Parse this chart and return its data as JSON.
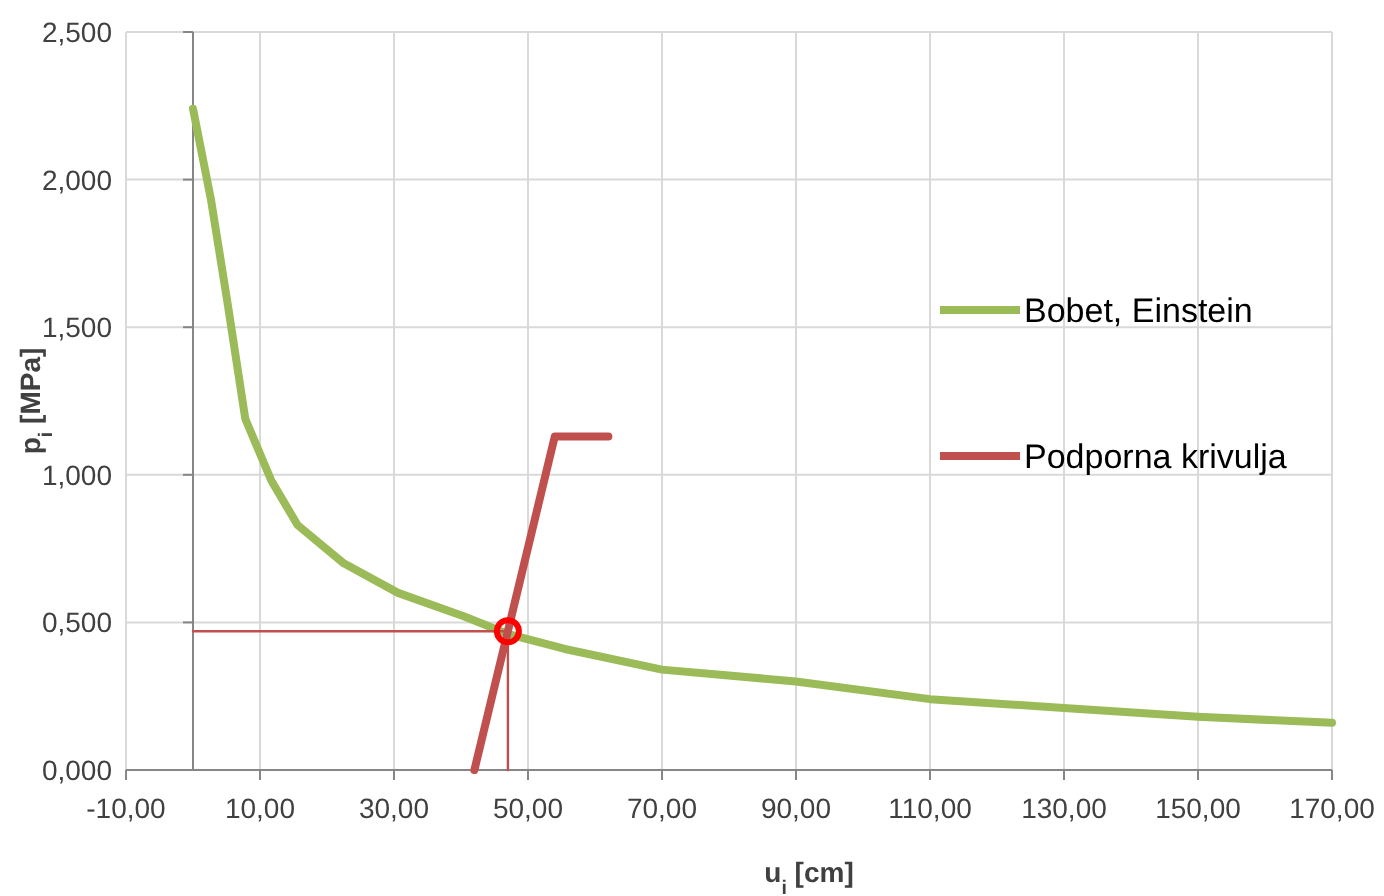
{
  "chart_data": {
    "type": "line",
    "xlabel": "u$_{i}$ [cm]",
    "ylabel": "p$_{i}$ [MPa]",
    "xlim": [
      -10,
      170
    ],
    "ylim": [
      0,
      2.5
    ],
    "xticks": [
      {
        "value": -10,
        "label": "-10,00"
      },
      {
        "value": 10,
        "label": "10,00"
      },
      {
        "value": 30,
        "label": "30,00"
      },
      {
        "value": 50,
        "label": "50,00"
      },
      {
        "value": 70,
        "label": "70,00"
      },
      {
        "value": 90,
        "label": "90,00"
      },
      {
        "value": 110,
        "label": "110,00"
      },
      {
        "value": 130,
        "label": "130,00"
      },
      {
        "value": 150,
        "label": "150,00"
      },
      {
        "value": 170,
        "label": "170,00"
      }
    ],
    "yticks": [
      {
        "value": 0,
        "label": "0,000"
      },
      {
        "value": 0.5,
        "label": "0,500"
      },
      {
        "value": 1,
        "label": "1,000"
      },
      {
        "value": 1.5,
        "label": "1,500"
      },
      {
        "value": 2,
        "label": "2,000"
      },
      {
        "value": 2.5,
        "label": "2,500"
      }
    ],
    "grid": true,
    "legend": "right",
    "marker": "none",
    "series": [
      {
        "name": "Bobet, Einstein",
        "color": "#9bbb59",
        "x": [
          0,
          2.7,
          5.1,
          7.8,
          11.7,
          15.6,
          22.5,
          30.6,
          40.5,
          47.1,
          55.5,
          70,
          90,
          110,
          130,
          150,
          170
        ],
        "values": [
          2.24,
          1.93,
          1.59,
          1.19,
          0.98,
          0.83,
          0.7,
          0.6,
          0.52,
          0.46,
          0.41,
          0.34,
          0.3,
          0.24,
          0.21,
          0.18,
          0.16
        ]
      },
      {
        "name": "Podporna krivulja",
        "color": "#c0504d",
        "x": [
          42,
          54,
          62
        ],
        "values": [
          0,
          1.13,
          1.13
        ]
      },
      {
        "type": "line",
        "color": "#c0504d",
        "x": [
          0,
          47,
          47
        ],
        "values": [
          0.47,
          0.47,
          0
        ]
      },
      {
        "type": "scatter",
        "marker": "circle",
        "color": "#ff0000",
        "x": [
          47
        ],
        "values": [
          0.47
        ]
      }
    ]
  }
}
